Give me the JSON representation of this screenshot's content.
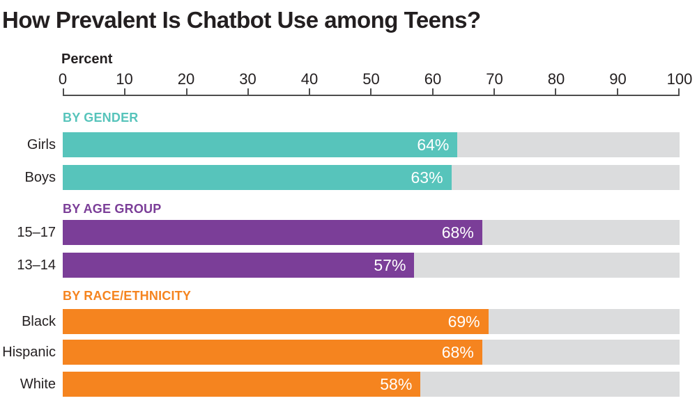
{
  "title": "How Prevalent Is Chatbot Use among Teens?",
  "axis": {
    "label": "Percent",
    "min": 0,
    "max": 100,
    "ticks": [
      "0",
      "10",
      "20",
      "30",
      "40",
      "50",
      "60",
      "70",
      "80",
      "90",
      "100"
    ]
  },
  "colors": {
    "teal": "#57c4bb",
    "purple": "#7b3e98",
    "orange": "#f5841f",
    "track_gray": "#dbdcdd",
    "text": "#231f20",
    "axis_line": "#4d4d4d",
    "value_text": "#ffffff"
  },
  "chart_data": {
    "type": "bar",
    "orientation": "horizontal",
    "title": "How Prevalent Is Chatbot Use among Teens?",
    "xlabel": "Percent",
    "xlim": [
      0,
      100
    ],
    "grid": false,
    "legend": "none",
    "groups": [
      {
        "label": "BY GENDER",
        "color": "#57c4bb",
        "bars": [
          {
            "category": "Girls",
            "value": 64,
            "display": "64%"
          },
          {
            "category": "Boys",
            "value": 63,
            "display": "63%"
          }
        ]
      },
      {
        "label": "BY AGE GROUP",
        "color": "#7b3e98",
        "bars": [
          {
            "category": "15–17",
            "value": 68,
            "display": "68%"
          },
          {
            "category": "13–14",
            "value": 57,
            "display": "57%"
          }
        ]
      },
      {
        "label": "BY RACE/ETHNICITY",
        "color": "#f5841f",
        "bars": [
          {
            "category": "Black",
            "value": 69,
            "display": "69%"
          },
          {
            "category": "Hispanic",
            "value": 68,
            "display": "68%"
          },
          {
            "category": "White",
            "value": 58,
            "display": "58%"
          }
        ]
      }
    ]
  }
}
